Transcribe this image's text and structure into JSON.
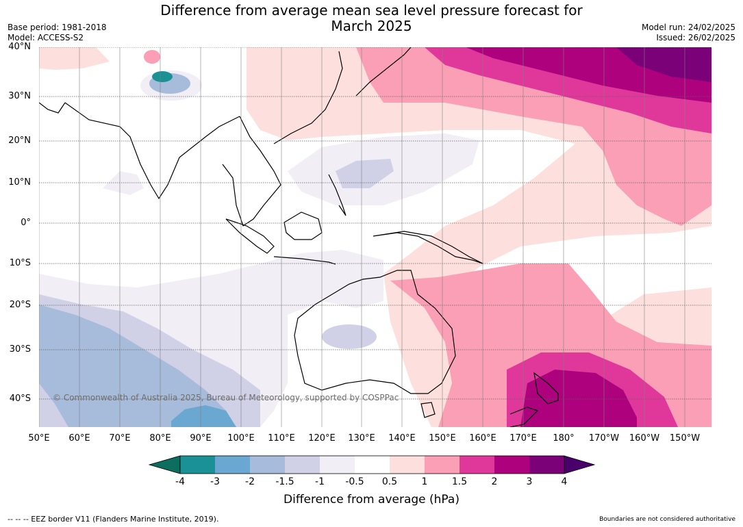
{
  "title": {
    "line1": "Difference from average mean sea level pressure forecast for",
    "line2": "March 2025"
  },
  "meta_left": {
    "base_period": "Base period: 1981-2018",
    "model": "Model: ACCESS-S2"
  },
  "meta_right": {
    "model_run": "Model run: 24/02/2025",
    "issued": "Issued: 26/02/2025"
  },
  "lat_labels": [
    "40°N",
    "30°N",
    "20°N",
    "10°N",
    "0°",
    "10°S",
    "20°S",
    "30°S",
    "40°S"
  ],
  "lon_labels": [
    "50°E",
    "60°E",
    "70°E",
    "80°E",
    "90°E",
    "100°E",
    "110°E",
    "120°E",
    "130°E",
    "140°E",
    "150°E",
    "160°E",
    "170°E",
    "180°",
    "170°W",
    "160°W",
    "150°W"
  ],
  "copyright": "© Commonwealth of Australia 2025, Bureau of Meteorology, supported by COSPPac",
  "colorbar": {
    "title": "Difference from average (hPa)",
    "labels": [
      "-4",
      "-3",
      "-2",
      "-1.5",
      "-1",
      "-0.5",
      "0.5",
      "1",
      "1.5",
      "2",
      "3",
      "4"
    ],
    "colors": [
      "#1a9194",
      "#6aa8d2",
      "#a7bbdb",
      "#d0d1e6",
      "#f1eef6",
      "#ffffff",
      "#fde0dd",
      "#fa9fb5",
      "#e0389a",
      "#ae017e",
      "#7a0177"
    ],
    "under_color": "#0b6e5f",
    "over_color": "#49006a"
  },
  "footer_left": "--  --  -- EEZ border V11 (Flanders Marine Institute, 2019).",
  "footer_right": "Boundaries are not considered authoritative"
}
